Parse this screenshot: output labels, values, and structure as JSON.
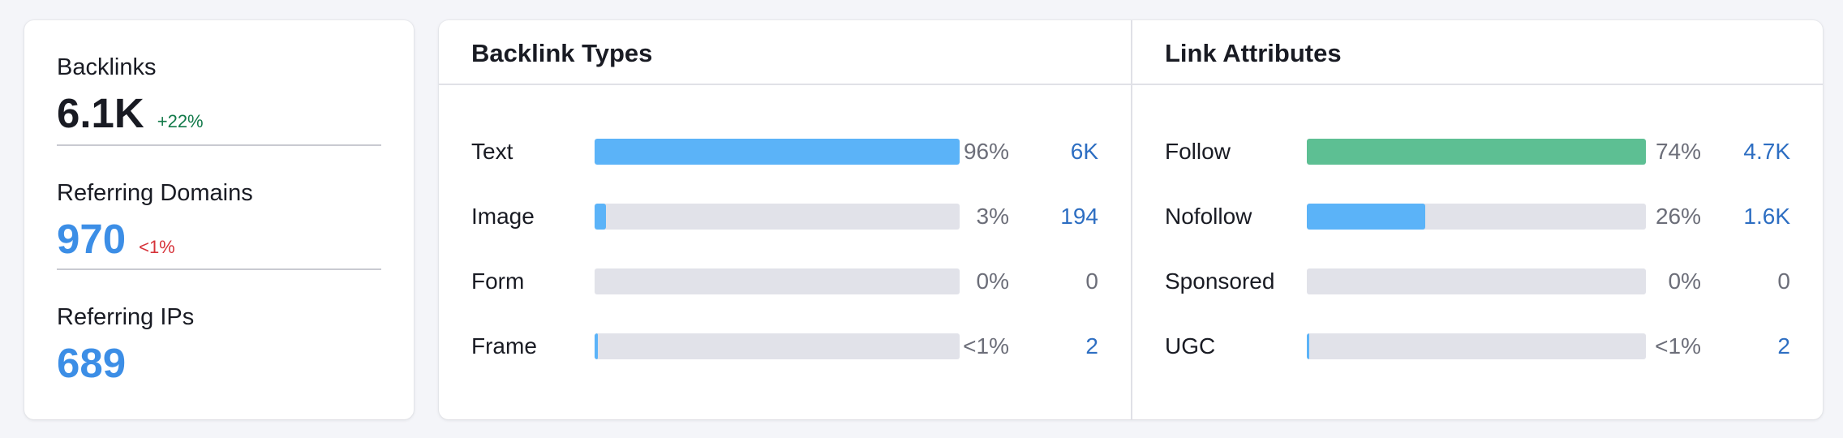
{
  "summary": {
    "backlinks": {
      "label": "Backlinks",
      "value": "6.1K",
      "change": "+22%"
    },
    "referring_domains": {
      "label": "Referring Domains",
      "value": "970",
      "change": "<1%"
    },
    "referring_ips": {
      "label": "Referring IPs",
      "value": "689"
    }
  },
  "backlink_types": {
    "title": "Backlink Types",
    "rows": [
      {
        "label": "Text",
        "percent": "96%",
        "count": "6K",
        "fill_fraction": 1.0,
        "color": "#5bb3f8"
      },
      {
        "label": "Image",
        "percent": "3%",
        "count": "194",
        "fill_fraction": 0.03,
        "color": "#5bb3f8"
      },
      {
        "label": "Form",
        "percent": "0%",
        "count": "0",
        "fill_fraction": 0.0,
        "color": "#5bb3f8"
      },
      {
        "label": "Frame",
        "percent": "<1%",
        "count": "2",
        "fill_fraction": 0.008,
        "color": "#5bb3f8"
      }
    ]
  },
  "link_attributes": {
    "title": "Link Attributes",
    "rows": [
      {
        "label": "Follow",
        "percent": "74%",
        "count": "4.7K",
        "fill_fraction": 1.0,
        "color": "#5dbf93"
      },
      {
        "label": "Nofollow",
        "percent": "26%",
        "count": "1.6K",
        "fill_fraction": 0.35,
        "color": "#5bb3f8"
      },
      {
        "label": "Sponsored",
        "percent": "0%",
        "count": "0",
        "fill_fraction": 0.0,
        "color": "#5bb3f8"
      },
      {
        "label": "UGC",
        "percent": "<1%",
        "count": "2",
        "fill_fraction": 0.008,
        "color": "#5bb3f8"
      }
    ]
  },
  "colors": {
    "accent_blue": "#3c8ee6",
    "link_blue": "#2d6ec2",
    "positive_green": "#127a4a",
    "negative_red": "#d6333a",
    "bar_blue": "#5bb3f8",
    "bar_green": "#5dbf93",
    "track_gray": "#e1e2e9"
  }
}
